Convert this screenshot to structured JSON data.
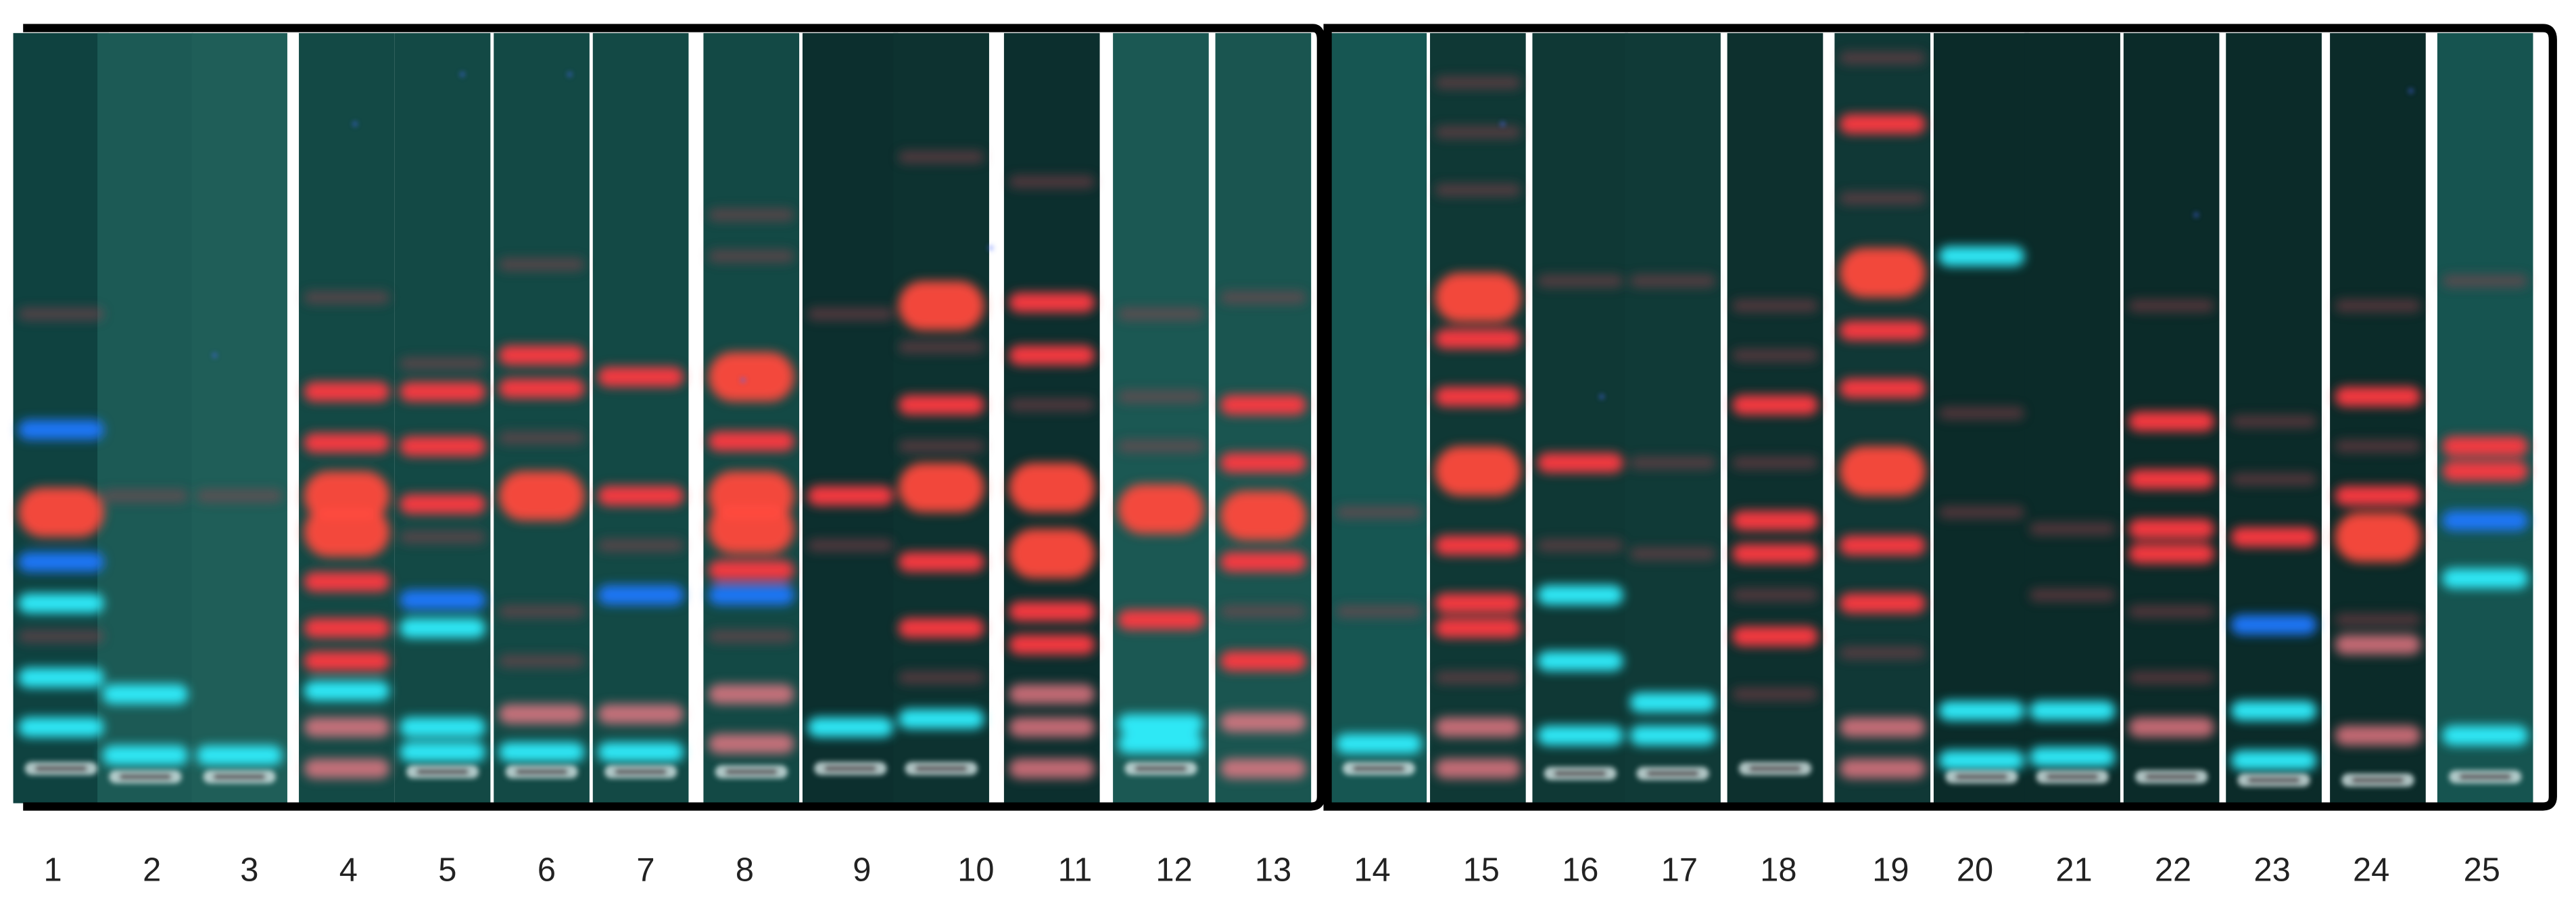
{
  "lane_labels": [
    1,
    2,
    3,
    4,
    5,
    6,
    7,
    8,
    9,
    10,
    11,
    12,
    13,
    14,
    15,
    16,
    17,
    18,
    19,
    20,
    21,
    22,
    23,
    24,
    25
  ]
}
